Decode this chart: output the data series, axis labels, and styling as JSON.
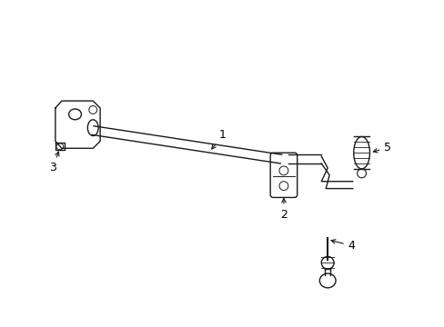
{
  "bg_color": "#ffffff",
  "line_color": "#1a1a1a",
  "lw": 1.0,
  "label_fontsize": 9
}
